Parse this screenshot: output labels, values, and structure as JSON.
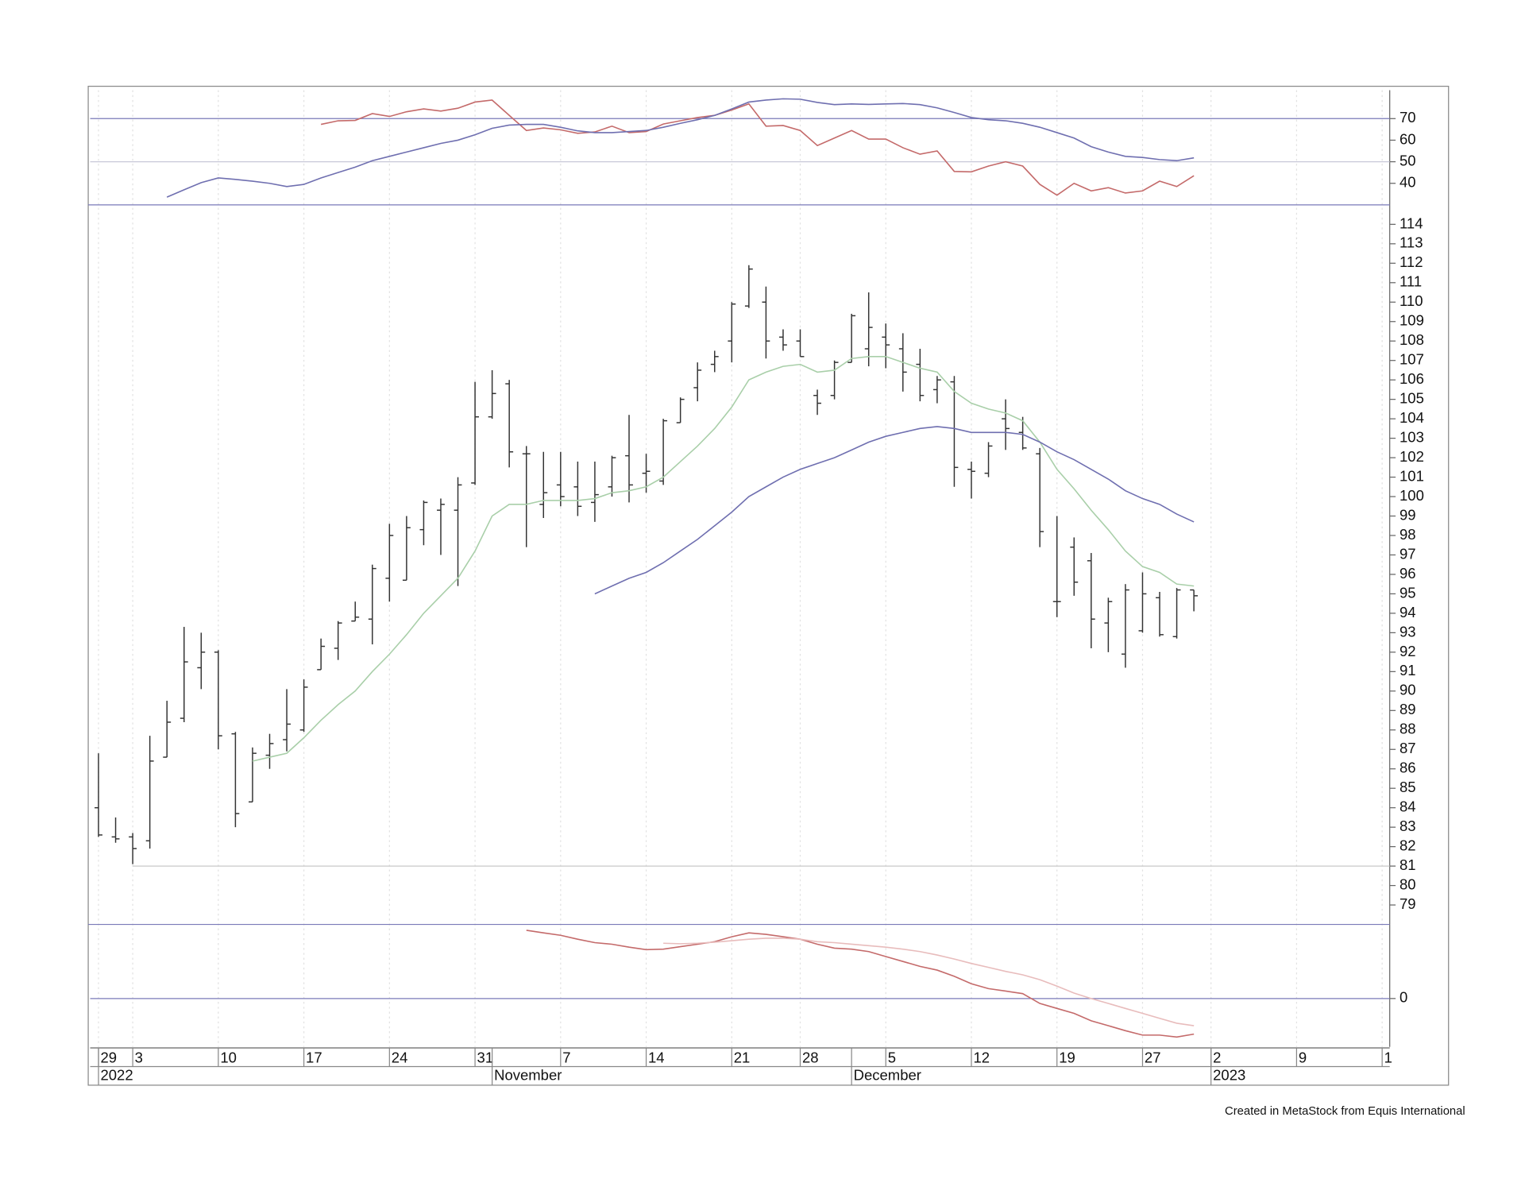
{
  "footer": "Created in MetaStock from Equis International",
  "x_axis": {
    "xlim": [
      -0.6,
      75.5
    ],
    "xticks": [
      {
        "value": 0,
        "label": "29"
      },
      {
        "value": 2,
        "label": "3"
      },
      {
        "value": 7,
        "label": "10"
      },
      {
        "value": 12,
        "label": "17"
      },
      {
        "value": 17,
        "label": "24"
      },
      {
        "value": 22,
        "label": "31"
      },
      {
        "value": 27,
        "label": "7"
      },
      {
        "value": 32,
        "label": "14"
      },
      {
        "value": 37,
        "label": "21"
      },
      {
        "value": 41,
        "label": "28"
      },
      {
        "value": 46,
        "label": "5"
      },
      {
        "value": 51,
        "label": "12"
      },
      {
        "value": 56,
        "label": "19"
      },
      {
        "value": 61,
        "label": "27"
      },
      {
        "value": 65,
        "label": "2"
      },
      {
        "value": 70,
        "label": "9"
      },
      {
        "value": 75,
        "label": "1"
      }
    ],
    "periods": [
      {
        "value": 0,
        "label": "2022"
      },
      {
        "value": 23,
        "label": "November"
      },
      {
        "value": 44,
        "label": "December"
      },
      {
        "value": 65,
        "label": "2023"
      }
    ],
    "grid": true
  },
  "chart_data": [
    {
      "type": "line",
      "ylim": [
        30,
        85
      ],
      "yticks": [
        40,
        50,
        60,
        70
      ],
      "hlines": [
        {
          "value": 70,
          "color": "#7a7ab8"
        },
        {
          "value": 50,
          "color": "#c8c8d8"
        }
      ],
      "series": [
        {
          "color": "#c46a6a",
          "values": [
            null,
            null,
            null,
            null,
            null,
            null,
            null,
            null,
            null,
            null,
            null,
            null,
            null,
            67.3,
            69.0,
            69.2,
            72.3,
            71.0,
            73.2,
            74.5,
            73.5,
            74.8,
            77.7,
            78.6,
            71.5,
            64.5,
            65.7,
            64.8,
            63.2,
            63.8,
            66.5,
            63.5,
            64.0,
            67.5,
            69.0,
            70.5,
            71.5,
            74.0,
            76.8,
            66.5,
            66.8,
            64.5,
            57.5,
            61.0,
            64.5,
            60.5,
            60.5,
            56.5,
            53.5,
            55.0,
            45.5,
            45.3,
            48.0,
            50.0,
            48.0,
            39.5,
            34.5,
            40.0,
            36.5,
            38.0,
            35.5,
            36.5,
            41.0,
            38.5,
            43.5
          ]
        },
        {
          "color": "#6f6fb0",
          "values": [
            null,
            null,
            null,
            null,
            33.6,
            37.0,
            40.3,
            42.5,
            41.8,
            41.0,
            40.0,
            38.5,
            39.5,
            42.5,
            45.0,
            47.5,
            50.5,
            52.5,
            54.5,
            56.5,
            58.5,
            60.0,
            62.5,
            65.5,
            67.0,
            67.3,
            67.3,
            66.0,
            64.3,
            63.5,
            63.5,
            64.0,
            64.5,
            66.0,
            67.8,
            69.5,
            71.5,
            74.5,
            77.7,
            78.6,
            79.2,
            79.0,
            77.5,
            76.5,
            76.8,
            76.6,
            76.8,
            77.0,
            76.5,
            75.0,
            72.8,
            70.5,
            69.5,
            69.0,
            67.8,
            66.0,
            63.5,
            61.0,
            57.0,
            54.5,
            52.5,
            52.0,
            51.0,
            50.5,
            51.8
          ]
        }
      ]
    },
    {
      "type": "ohlc",
      "ylim": [
        78,
        115
      ],
      "yticks": [
        79,
        80,
        81,
        82,
        83,
        84,
        85,
        86,
        87,
        88,
        89,
        90,
        91,
        92,
        93,
        94,
        95,
        96,
        97,
        98,
        99,
        100,
        101,
        102,
        103,
        104,
        105,
        106,
        107,
        108,
        109,
        110,
        111,
        112,
        113,
        114
      ],
      "hlines": [
        {
          "value": 81,
          "color": "#c8c8c8"
        }
      ],
      "color": "#333333",
      "open": [
        84.0,
        82.5,
        82.5,
        82.3,
        86.6,
        88.6,
        91.2,
        92.0,
        87.8,
        84.3,
        86.7,
        87.5,
        88.0,
        91.1,
        92.2,
        93.6,
        93.7,
        95.8,
        95.7,
        98.3,
        99.3,
        99.3,
        100.7,
        104.1,
        105.8,
        102.2,
        99.6,
        100.6,
        100.5,
        99.7,
        100.5,
        102.1,
        101.2,
        100.8,
        103.8,
        105.6,
        106.8,
        108.0,
        109.8,
        110.0,
        108.2,
        108.0,
        105.2,
        105.2,
        106.9,
        107.6,
        108.2,
        107.6,
        106.8,
        105.5,
        105.9,
        101.4,
        101.2,
        104.0,
        103.3,
        102.2,
        94.6,
        97.4,
        96.7,
        93.5,
        91.9,
        93.1,
        94.8,
        92.8,
        95.2
      ],
      "high": [
        86.8,
        83.5,
        82.7,
        87.7,
        89.5,
        93.3,
        93.0,
        92.1,
        87.9,
        87.1,
        87.8,
        90.1,
        90.6,
        92.7,
        93.6,
        94.6,
        96.5,
        98.6,
        99.0,
        99.8,
        99.9,
        101.0,
        105.9,
        106.5,
        106.0,
        102.6,
        102.3,
        102.3,
        101.8,
        101.8,
        102.1,
        104.2,
        102.2,
        104.0,
        105.1,
        106.9,
        107.5,
        110.0,
        111.9,
        110.8,
        108.6,
        108.6,
        105.5,
        107.0,
        109.4,
        110.5,
        108.9,
        108.4,
        107.6,
        106.2,
        106.2,
        101.8,
        102.8,
        105.0,
        104.1,
        102.5,
        99.0,
        97.9,
        97.1,
        94.8,
        95.5,
        96.1,
        95.1,
        95.3,
        95.2
      ],
      "low": [
        82.5,
        82.2,
        81.1,
        81.9,
        86.6,
        88.4,
        90.1,
        87.0,
        83.0,
        84.3,
        86.0,
        86.9,
        87.9,
        91.1,
        91.6,
        93.6,
        92.4,
        94.6,
        95.7,
        97.5,
        97.0,
        95.4,
        100.6,
        104.0,
        101.5,
        97.4,
        98.9,
        99.5,
        99.0,
        98.7,
        100.0,
        99.7,
        100.2,
        100.6,
        103.8,
        104.9,
        106.4,
        106.9,
        109.7,
        107.1,
        107.5,
        107.2,
        104.2,
        105.0,
        106.9,
        106.7,
        106.6,
        105.4,
        104.9,
        104.8,
        100.5,
        99.9,
        101.0,
        102.4,
        102.4,
        97.4,
        93.8,
        94.9,
        92.2,
        92.0,
        91.2,
        93.0,
        92.8,
        92.7,
        94.1
      ],
      "close": [
        82.6,
        82.4,
        81.9,
        86.4,
        88.4,
        91.5,
        92.0,
        87.7,
        83.7,
        86.8,
        87.3,
        88.3,
        90.2,
        92.3,
        93.5,
        93.8,
        96.3,
        98.0,
        98.4,
        99.7,
        99.6,
        100.6,
        104.1,
        105.3,
        102.3,
        102.2,
        100.2,
        100.0,
        99.5,
        100.1,
        102.0,
        100.6,
        101.3,
        103.9,
        105.0,
        106.5,
        107.2,
        109.9,
        111.7,
        108.0,
        107.8,
        107.2,
        104.8,
        106.9,
        109.3,
        108.7,
        107.8,
        106.4,
        105.2,
        106.0,
        101.5,
        101.3,
        102.6,
        103.5,
        102.5,
        98.2,
        94.6,
        95.6,
        93.7,
        94.6,
        95.2,
        95.0,
        92.9,
        95.2,
        94.9
      ],
      "series": [
        {
          "color": "#a9cfa9",
          "values": [
            null,
            null,
            null,
            null,
            null,
            null,
            null,
            null,
            null,
            86.4,
            86.6,
            86.8,
            87.6,
            88.5,
            89.3,
            90.0,
            91.0,
            91.9,
            92.9,
            94.0,
            94.9,
            95.8,
            97.2,
            99.0,
            99.6,
            99.6,
            99.8,
            99.8,
            99.8,
            99.9,
            100.2,
            100.3,
            100.5,
            101.0,
            101.8,
            102.6,
            103.5,
            104.6,
            106.0,
            106.4,
            106.7,
            106.8,
            106.4,
            106.5,
            107.1,
            107.2,
            107.2,
            106.9,
            106.6,
            106.4,
            105.4,
            104.8,
            104.5,
            104.3,
            103.9,
            102.8,
            101.4,
            100.4,
            99.3,
            98.3,
            97.2,
            96.4,
            96.1,
            95.5,
            95.4
          ]
        },
        {
          "color": "#6f6fb0",
          "values": [
            null,
            null,
            null,
            null,
            null,
            null,
            null,
            null,
            null,
            null,
            null,
            null,
            null,
            null,
            null,
            null,
            null,
            null,
            null,
            null,
            null,
            null,
            null,
            null,
            null,
            null,
            null,
            null,
            null,
            95.0,
            95.4,
            95.8,
            96.1,
            96.6,
            97.2,
            97.8,
            98.5,
            99.2,
            100.0,
            100.5,
            101.0,
            101.4,
            101.7,
            102.0,
            102.4,
            102.8,
            103.1,
            103.3,
            103.5,
            103.6,
            103.5,
            103.3,
            103.3,
            103.3,
            103.2,
            102.8,
            102.3,
            101.9,
            101.4,
            100.9,
            100.3,
            99.9,
            99.6,
            99.1,
            98.7
          ]
        }
      ]
    },
    {
      "type": "line",
      "ylim": [
        -2,
        3
      ],
      "yticks": [
        0
      ],
      "hlines": [
        {
          "value": 0,
          "color": "#7a7ab8"
        }
      ],
      "series": [
        {
          "color": "#c46a6a",
          "values": [
            null,
            null,
            null,
            null,
            null,
            null,
            null,
            null,
            null,
            null,
            null,
            null,
            null,
            null,
            null,
            null,
            null,
            null,
            null,
            null,
            null,
            null,
            null,
            null,
            null,
            2.76,
            2.66,
            2.56,
            2.4,
            2.26,
            2.2,
            2.08,
            1.98,
            2.0,
            2.1,
            2.2,
            2.3,
            2.5,
            2.66,
            2.6,
            2.5,
            2.4,
            2.2,
            2.04,
            2.0,
            1.9,
            1.7,
            1.5,
            1.3,
            1.15,
            0.9,
            0.6,
            0.4,
            0.3,
            0.2,
            -0.2,
            -0.4,
            -0.6,
            -0.9,
            -1.1,
            -1.3,
            -1.48,
            -1.48,
            -1.56,
            -1.44
          ]
        },
        {
          "color": "#e8bcbc",
          "values": [
            null,
            null,
            null,
            null,
            null,
            null,
            null,
            null,
            null,
            null,
            null,
            null,
            null,
            null,
            null,
            null,
            null,
            null,
            null,
            null,
            null,
            null,
            null,
            null,
            null,
            null,
            null,
            null,
            null,
            null,
            null,
            null,
            null,
            2.24,
            2.22,
            2.24,
            2.28,
            2.34,
            2.4,
            2.44,
            2.44,
            2.4,
            2.3,
            2.26,
            2.2,
            2.14,
            2.08,
            2.0,
            1.9,
            1.76,
            1.6,
            1.42,
            1.26,
            1.1,
            0.96,
            0.76,
            0.5,
            0.22,
            0,
            -0.2,
            -0.4,
            -0.6,
            -0.8,
            -1.0,
            -1.1
          ]
        }
      ]
    }
  ]
}
